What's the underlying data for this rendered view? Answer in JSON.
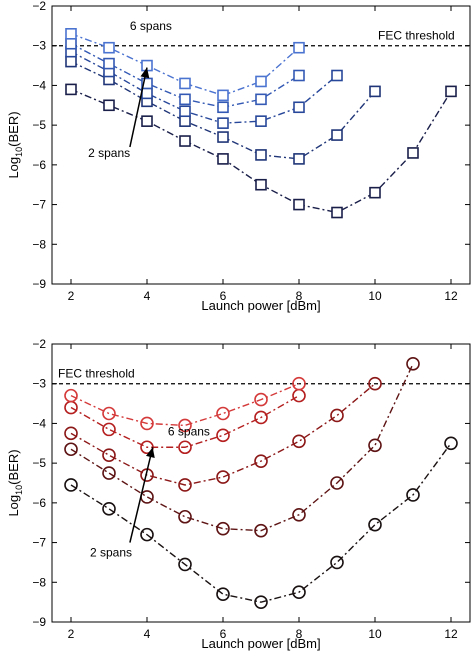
{
  "chart_data": [
    {
      "type": "line",
      "xlabel": "Launch power [dBm]",
      "ylabel_main": "Log",
      "ylabel_sub": "10",
      "ylabel_tail": "(BER)",
      "xlim": [
        1.5,
        12.5
      ],
      "ylim": [
        -9,
        -2
      ],
      "xticks": [
        2,
        4,
        6,
        8,
        10,
        12
      ],
      "yticks": [
        -2,
        -3,
        -4,
        -5,
        -6,
        -7,
        -8,
        -9
      ],
      "marker": "square",
      "threshold": {
        "y": -3,
        "label": "FEC threshold"
      },
      "annotations": {
        "top": "6 spans",
        "bottom": "2 spans"
      },
      "series": [
        {
          "color": "#1a1f4a",
          "x": [
            2,
            3,
            4,
            5,
            6,
            7,
            8,
            9,
            10,
            11,
            12
          ],
          "y": [
            -4.1,
            -4.5,
            -4.9,
            -5.4,
            -5.85,
            -6.5,
            -7.0,
            -7.2,
            -6.7,
            -5.7,
            -4.15
          ]
        },
        {
          "color": "#1f3577",
          "x": [
            2,
            3,
            4,
            5,
            6,
            7,
            8,
            9,
            10
          ],
          "y": [
            -3.4,
            -3.85,
            -4.4,
            -4.9,
            -5.3,
            -5.75,
            -5.85,
            -5.25,
            -4.15
          ]
        },
        {
          "color": "#27479a",
          "x": [
            2,
            3,
            4,
            5,
            6,
            7,
            8,
            9
          ],
          "y": [
            -3.15,
            -3.65,
            -4.2,
            -4.65,
            -4.95,
            -4.9,
            -4.55,
            -3.75
          ]
        },
        {
          "color": "#3359b4",
          "x": [
            2,
            3,
            4,
            5,
            6,
            7,
            8
          ],
          "y": [
            -2.95,
            -3.45,
            -3.95,
            -4.35,
            -4.55,
            -4.35,
            -3.75
          ]
        },
        {
          "color": "#4b73d0",
          "x": [
            2,
            3,
            4,
            5,
            6,
            7,
            8
          ],
          "y": [
            -2.7,
            -3.05,
            -3.5,
            -3.95,
            -4.25,
            -3.9,
            -3.05
          ]
        }
      ]
    },
    {
      "type": "line",
      "xlabel": "Launch power [dBm]",
      "ylabel_main": "Log",
      "ylabel_sub": "10",
      "ylabel_tail": "(BER)",
      "xlim": [
        1.5,
        12.5
      ],
      "ylim": [
        -9,
        -2
      ],
      "xticks": [
        2,
        4,
        6,
        8,
        10,
        12
      ],
      "yticks": [
        -2,
        -3,
        -4,
        -5,
        -6,
        -7,
        -8,
        -9
      ],
      "marker": "circle",
      "threshold": {
        "y": -3,
        "label": "FEC threshold"
      },
      "annotations": {
        "top": "6 spans",
        "bottom": "2 spans"
      },
      "series": [
        {
          "color": "#1a1212",
          "x": [
            2,
            3,
            4,
            5,
            6,
            7,
            8,
            9,
            10,
            11,
            12
          ],
          "y": [
            -5.55,
            -6.15,
            -6.8,
            -7.55,
            -8.3,
            -8.5,
            -8.25,
            -7.5,
            -6.55,
            -5.8,
            -4.5
          ]
        },
        {
          "color": "#5e1414",
          "x": [
            2,
            3,
            4,
            5,
            6,
            7,
            8,
            9,
            10,
            11
          ],
          "y": [
            -4.65,
            -5.25,
            -5.85,
            -6.35,
            -6.65,
            -6.7,
            -6.3,
            -5.5,
            -4.55,
            -2.5
          ]
        },
        {
          "color": "#8c1818",
          "x": [
            2,
            3,
            4,
            5,
            6,
            7,
            8,
            9,
            10
          ],
          "y": [
            -4.25,
            -4.8,
            -5.3,
            -5.55,
            -5.35,
            -4.95,
            -4.45,
            -3.8,
            -3.0
          ]
        },
        {
          "color": "#b51f1f",
          "x": [
            2,
            3,
            4,
            5,
            6,
            7,
            8
          ],
          "y": [
            -3.6,
            -4.15,
            -4.6,
            -4.6,
            -4.3,
            -3.85,
            -3.3
          ]
        },
        {
          "color": "#d53a3a",
          "x": [
            2,
            3,
            4,
            5,
            6,
            7,
            8
          ],
          "y": [
            -3.3,
            -3.75,
            -4.0,
            -4.05,
            -3.75,
            -3.4,
            -3.0
          ]
        }
      ]
    }
  ]
}
